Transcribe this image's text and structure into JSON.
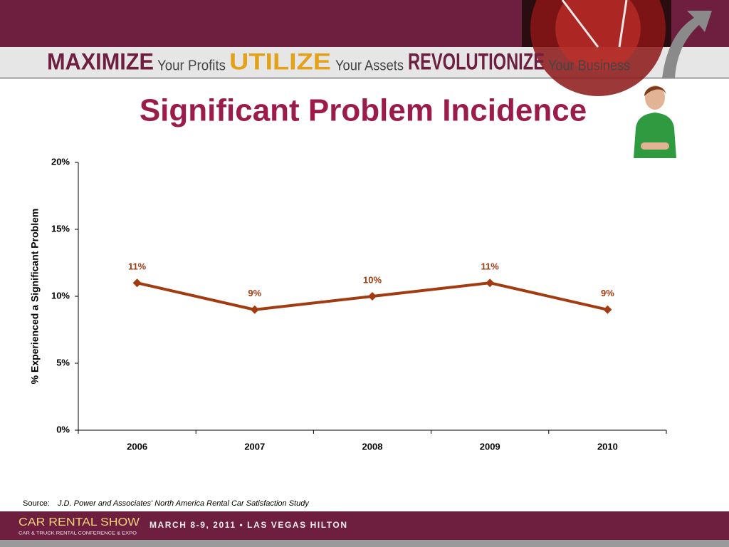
{
  "header": {
    "words": [
      "MAXIMIZE",
      "Your Profits",
      "UTILIZE",
      "Your Assets",
      "REVOLUTIONIZE",
      "Your Business"
    ]
  },
  "chart_data": {
    "type": "line",
    "title": "Significant Problem Incidence",
    "y_label": "% Experienced a Significant Problem",
    "categories": [
      "2006",
      "2007",
      "2008",
      "2009",
      "2010"
    ],
    "values": [
      11,
      9,
      10,
      11,
      9
    ],
    "value_labels": [
      "11%",
      "9%",
      "10%",
      "11%",
      "9%"
    ],
    "color": "#a33a10",
    "ylim": [
      0,
      20
    ],
    "yticks": [
      {
        "value": 0,
        "label": "0%"
      },
      {
        "value": 5,
        "label": "5%"
      },
      {
        "value": 10,
        "label": "10%"
      },
      {
        "value": 15,
        "label": "15%"
      },
      {
        "value": 20,
        "label": "20%"
      }
    ],
    "grid": false
  },
  "source": {
    "label": "Source:",
    "text": "J.D. Power and Associates' North America Rental Car Satisfaction Study"
  },
  "footer": {
    "brand": "CAR RENTAL SHOW",
    "tagline": "CAR & TRUCK RENTAL CONFERENCE & EXPO",
    "event": "MARCH 8-9, 2011 • LAS VEGAS HILTON"
  }
}
